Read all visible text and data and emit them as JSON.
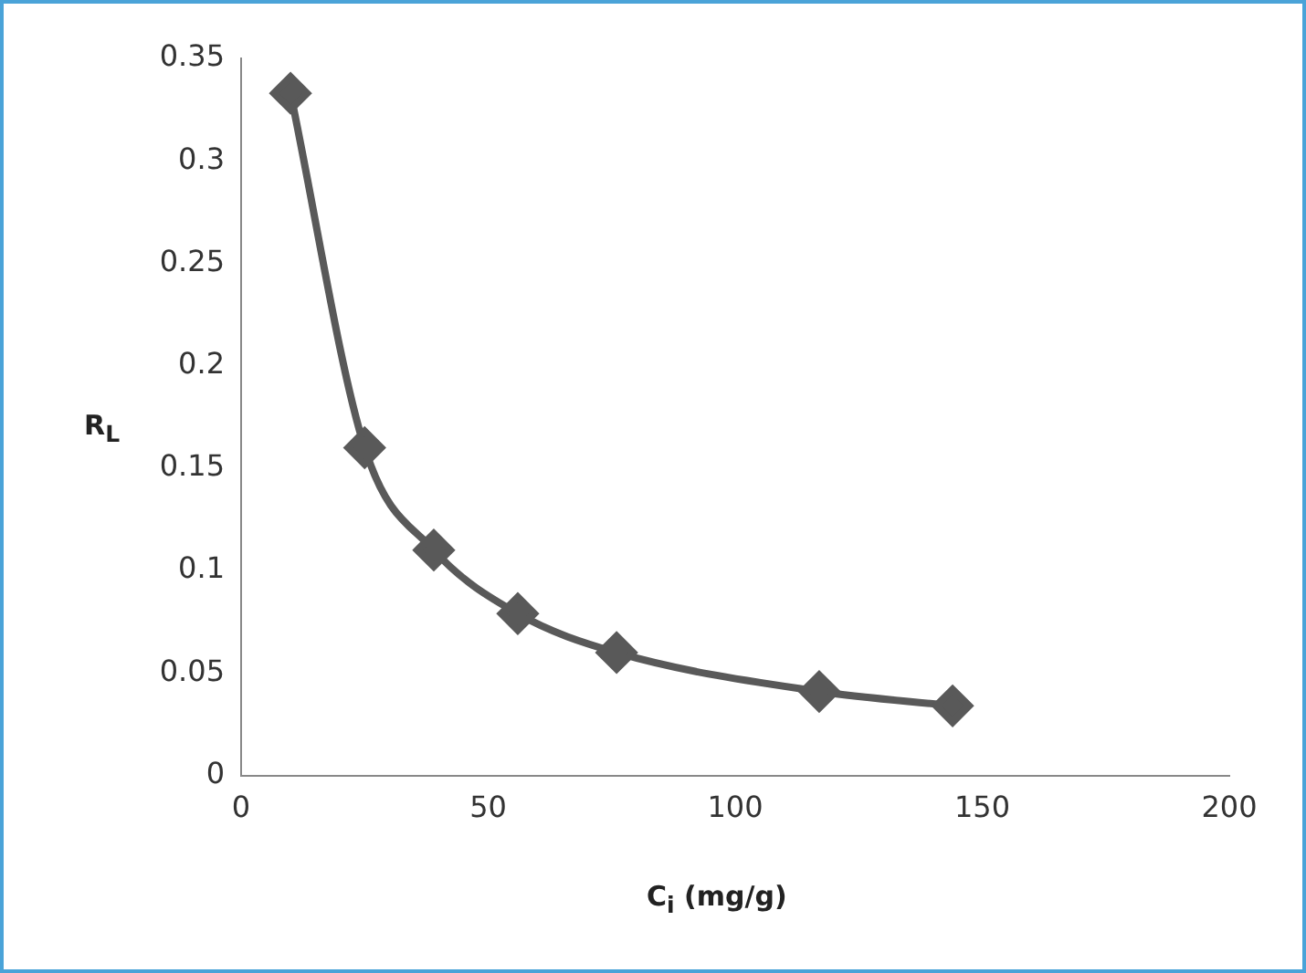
{
  "chart_data": {
    "type": "line",
    "xlabel": "C$_{i}$ (mg/g)",
    "ylabel": "R$_{L}$",
    "x": [
      10,
      25,
      39,
      56,
      76,
      117,
      144
    ],
    "series": [
      {
        "color": "#595959",
        "values": [
          0.333,
          0.16,
          0.11,
          0.079,
          0.06,
          0.041,
          0.034
        ]
      }
    ],
    "xlim": [
      0,
      200
    ],
    "xticks": [
      0,
      50,
      100,
      150,
      200
    ],
    "ylim": [
      0,
      0.35
    ],
    "yticks": [
      0,
      0.05,
      0.1,
      0.15,
      0.2,
      0.25,
      0.3,
      0.35
    ],
    "grid": false,
    "legend": false,
    "marker": "diamond",
    "line_style": "solid"
  }
}
